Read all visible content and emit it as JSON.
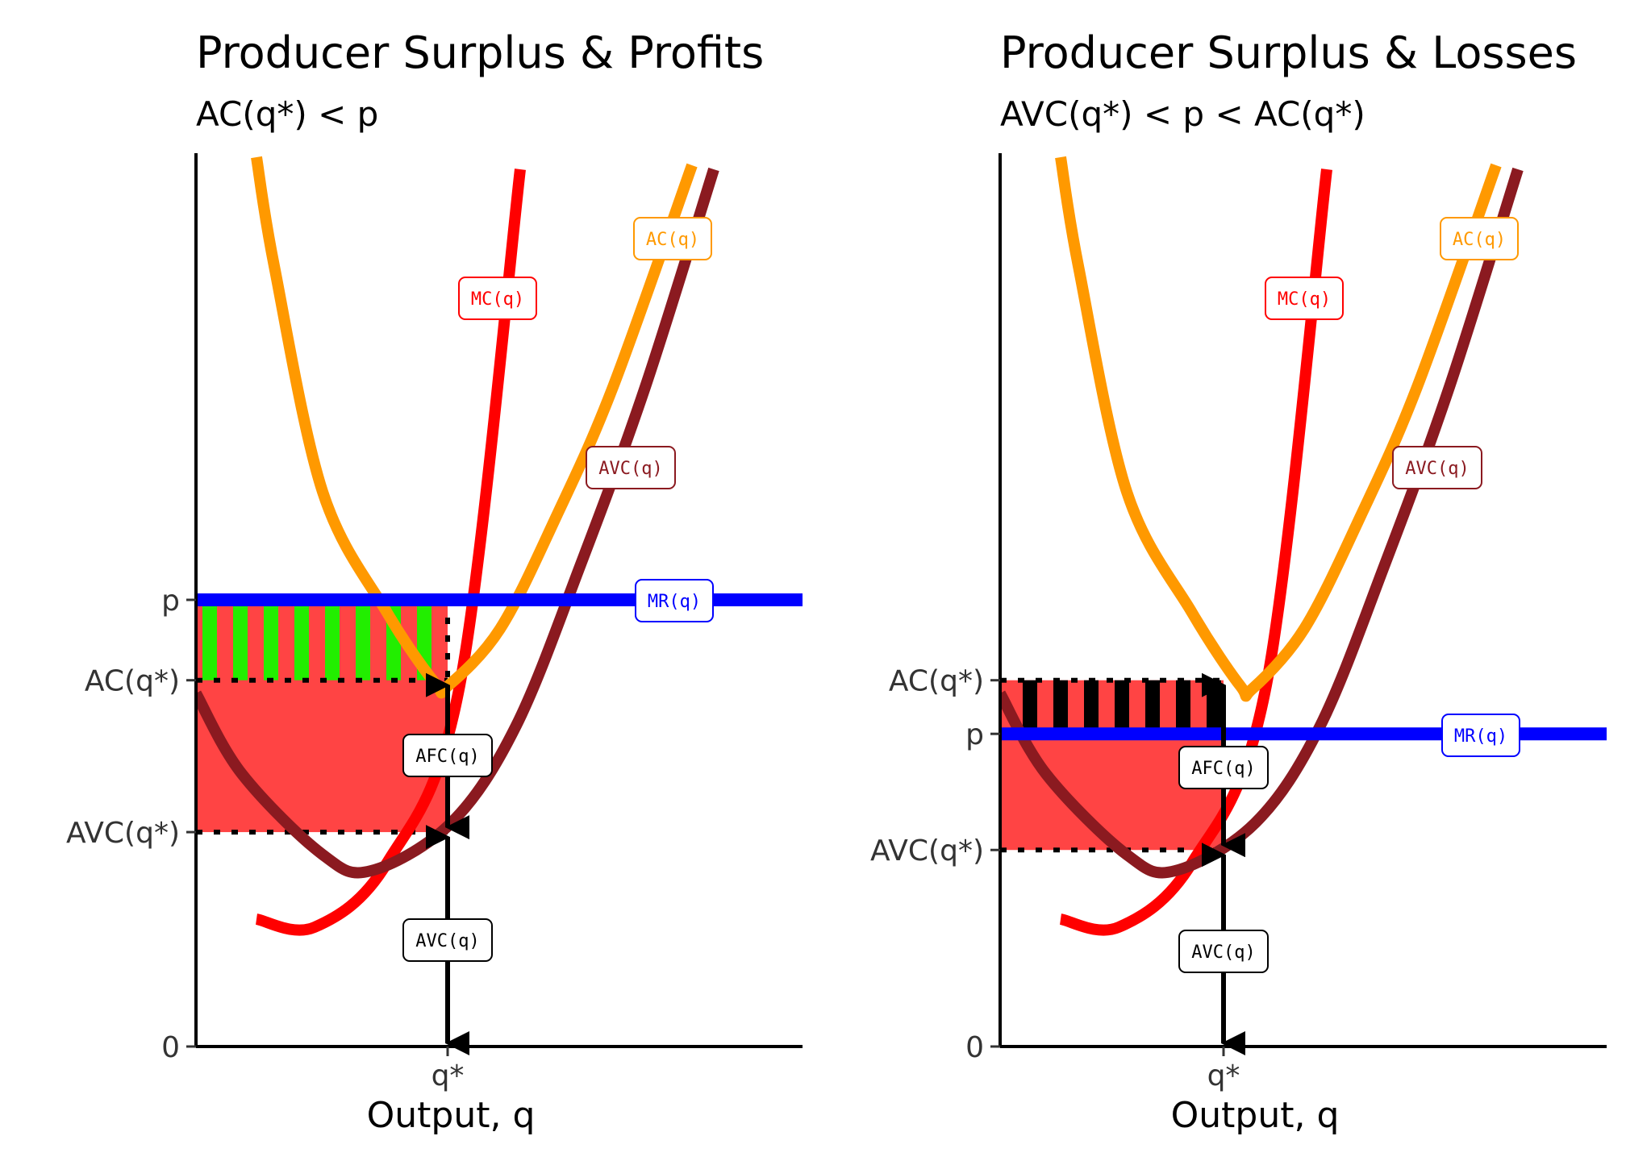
{
  "colors": {
    "mc": "#ff0000",
    "ac": "#ff9900",
    "avc": "#8b1a20",
    "mr": "#0000ff",
    "profit": "#22ee00",
    "loss": "#000000",
    "fill": "#ff4444",
    "axis": "#000000"
  },
  "chart_data": [
    {
      "type": "line",
      "title": "Producer Surplus & Profits",
      "subtitle": "AC(q*) < p",
      "xlabel": "Output, q",
      "x_ticks": [
        "q*"
      ],
      "y_ticks": [
        "0",
        "AVC(q*)",
        "AC(q*)",
        "p"
      ],
      "ylim": [
        0,
        10
      ],
      "xlim": [
        0,
        10
      ],
      "price": 5,
      "q_star": 4.2,
      "ac_at_q": 4.1,
      "avc_at_q": 2.4,
      "curve_labels": {
        "mc": "MC(q)",
        "ac": "AC(q)",
        "avc": "AVC(q)",
        "mr": "MR(q)"
      },
      "segment_labels": {
        "afc": "AFC(q)",
        "avc": "AVC(q)"
      },
      "surplus_region": "profit"
    },
    {
      "type": "line",
      "title": "Producer Surplus & Losses",
      "subtitle": "AVC(q*) < p < AC(q*)",
      "xlabel": "Output, q",
      "x_ticks": [
        "q*"
      ],
      "y_ticks": [
        "0",
        "AVC(q*)",
        "p",
        "AC(q*)"
      ],
      "ylim": [
        0,
        10
      ],
      "xlim": [
        0,
        10
      ],
      "price": 3.5,
      "q_star": 3.6,
      "ac_at_q": 4.1,
      "avc_at_q": 2.2,
      "curve_labels": {
        "mc": "MC(q)",
        "ac": "AC(q)",
        "avc": "AVC(q)",
        "mr": "MR(q)"
      },
      "segment_labels": {
        "afc": "AFC(q)",
        "avc": "AVC(q)"
      },
      "surplus_region": "loss"
    }
  ]
}
